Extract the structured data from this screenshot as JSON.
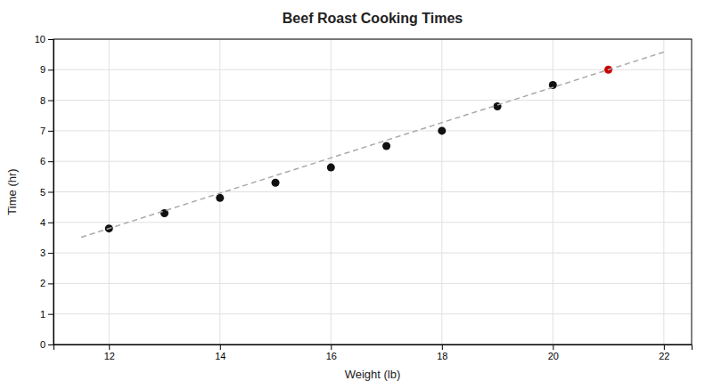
{
  "chart_data": {
    "type": "scatter",
    "title": "Beef Roast Cooking Times",
    "xlabel": "Weight (lb)",
    "ylabel": "Time (hr)",
    "x": [
      12,
      13,
      14,
      15,
      16,
      17,
      18,
      19,
      20,
      21
    ],
    "series": [
      {
        "type": "scatter",
        "marker": "circle",
        "values": [
          3.8,
          4.3,
          4.8,
          5.3,
          5.8,
          6.5,
          7.0,
          7.8,
          8.5,
          9.0
        ],
        "colors": [
          "#111111",
          "#111111",
          "#111111",
          "#111111",
          "#111111",
          "#111111",
          "#111111",
          "#111111",
          "#111111",
          "#cc0000"
        ]
      },
      {
        "type": "line",
        "line_style": "dashed",
        "color": "#aaaaaa",
        "x": [
          11.5,
          22.0
        ],
        "values": [
          3.5111111111111106,
          9.577777777777778
        ]
      }
    ],
    "xlim": [
      11,
      22.5
    ],
    "ylim": [
      0,
      10
    ],
    "xticks": [
      12,
      14,
      16,
      18,
      20,
      22
    ],
    "yticks": [
      0,
      1,
      2,
      3,
      4,
      5,
      6,
      7,
      8,
      9,
      10
    ],
    "grid": true
  }
}
